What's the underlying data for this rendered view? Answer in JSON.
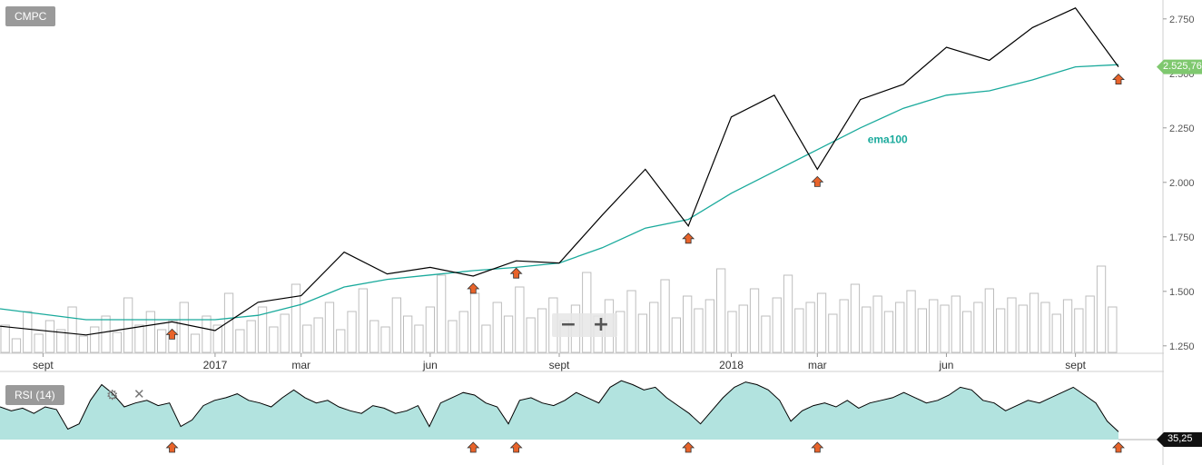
{
  "symbol": "CMPC",
  "indicator_label": "RSI (14)",
  "zoom": {
    "minus": "−",
    "plus": "+"
  },
  "icons": {
    "settings": "gear-icon",
    "close": "close-icon",
    "signal": "arrow-up-icon"
  },
  "colors": {
    "price": "#000000",
    "ema": "#1aaa9c",
    "rsi_fill": "#b2e3df",
    "signal": "#e8632a",
    "volume": "#bdbdbd",
    "price_badge": "#7fc86f"
  },
  "chart_data": [
    {
      "type": "line",
      "title": "CMPC",
      "y_ticks": [
        "2.750",
        "2.500",
        "2.250",
        "2.000",
        "1.750",
        "1.500",
        "1.250"
      ],
      "ylim": [
        1220,
        2820
      ],
      "x_ticks": [
        "sept",
        "2017",
        "mar",
        "jun",
        "sept",
        "2018",
        "mar",
        "jun",
        "sept"
      ],
      "x_months": [
        "2016-09",
        "2017-01",
        "2017-03",
        "2017-06",
        "2017-09",
        "2018-01",
        "2018-03",
        "2018-06",
        "2018-09"
      ],
      "last_price_label": "2.525,76",
      "series": [
        {
          "name": "CMPC",
          "points": [
            [
              "2016-08",
              1340
            ],
            [
              "2016-10",
              1300
            ],
            [
              "2016-12",
              1360
            ],
            [
              "2017-01",
              1320
            ],
            [
              "2017-02",
              1450
            ],
            [
              "2017-03",
              1480
            ],
            [
              "2017-04",
              1680
            ],
            [
              "2017-05",
              1580
            ],
            [
              "2017-06",
              1610
            ],
            [
              "2017-07",
              1570
            ],
            [
              "2017-08",
              1640
            ],
            [
              "2017-09",
              1630
            ],
            [
              "2017-10",
              1850
            ],
            [
              "2017-11",
              2060
            ],
            [
              "2017-12",
              1800
            ],
            [
              "2018-01",
              2300
            ],
            [
              "2018-02",
              2400
            ],
            [
              "2018-03",
              2060
            ],
            [
              "2018-04",
              2380
            ],
            [
              "2018-05",
              2450
            ],
            [
              "2018-06",
              2620
            ],
            [
              "2018-07",
              2560
            ],
            [
              "2018-08",
              2710
            ],
            [
              "2018-09",
              2800
            ],
            [
              "2018-10",
              2530
            ]
          ]
        },
        {
          "name": "ema100",
          "points": [
            [
              "2016-08",
              1420
            ],
            [
              "2016-10",
              1370
            ],
            [
              "2016-12",
              1370
            ],
            [
              "2017-01",
              1370
            ],
            [
              "2017-02",
              1390
            ],
            [
              "2017-03",
              1440
            ],
            [
              "2017-04",
              1520
            ],
            [
              "2017-05",
              1555
            ],
            [
              "2017-06",
              1575
            ],
            [
              "2017-07",
              1595
            ],
            [
              "2017-08",
              1610
            ],
            [
              "2017-09",
              1630
            ],
            [
              "2017-10",
              1700
            ],
            [
              "2017-11",
              1790
            ],
            [
              "2017-12",
              1830
            ],
            [
              "2018-01",
              1950
            ],
            [
              "2018-02",
              2050
            ],
            [
              "2018-03",
              2150
            ],
            [
              "2018-04",
              2250
            ],
            [
              "2018-05",
              2340
            ],
            [
              "2018-06",
              2400
            ],
            [
              "2018-07",
              2420
            ],
            [
              "2018-08",
              2470
            ],
            [
              "2018-09",
              2530
            ],
            [
              "2018-10",
              2540
            ]
          ]
        }
      ],
      "signals": [
        "2016-12",
        "2017-07",
        "2017-08",
        "2017-12",
        "2018-03",
        "2018-10"
      ],
      "volume": {
        "ylim": [
          0,
          100
        ],
        "values": [
          30,
          15,
          45,
          20,
          35,
          25,
          50,
          18,
          28,
          40,
          22,
          60,
          30,
          45,
          25,
          35,
          55,
          20,
          40,
          30,
          65,
          25,
          35,
          50,
          28,
          42,
          75,
          30,
          38,
          55,
          25,
          45,
          70,
          35,
          28,
          60,
          40,
          30,
          50,
          85,
          35,
          45,
          65,
          30,
          55,
          40,
          72,
          38,
          48,
          60,
          35,
          52,
          88,
          40,
          58,
          45,
          68,
          42,
          55,
          80,
          38,
          62,
          48,
          58,
          92,
          45,
          52,
          70,
          40,
          60,
          85,
          48,
          55,
          65,
          42,
          58,
          75,
          50,
          62,
          45,
          55,
          68,
          48,
          58,
          52,
          62,
          45,
          55,
          70,
          48,
          60,
          52,
          65,
          55,
          42,
          58,
          48,
          62,
          95,
          50
        ]
      }
    },
    {
      "type": "area",
      "title": "RSI (14)",
      "ylim": [
        30,
        80
      ],
      "last_value_label": "35,25",
      "values": [
        55,
        52,
        54,
        50,
        55,
        53,
        38,
        42,
        60,
        72,
        65,
        55,
        58,
        60,
        56,
        58,
        40,
        45,
        56,
        60,
        62,
        65,
        60,
        58,
        55,
        62,
        68,
        62,
        58,
        60,
        55,
        52,
        50,
        56,
        54,
        50,
        52,
        56,
        40,
        58,
        62,
        66,
        64,
        58,
        55,
        42,
        60,
        62,
        58,
        56,
        60,
        66,
        62,
        58,
        70,
        75,
        72,
        68,
        70,
        62,
        56,
        50,
        42,
        52,
        62,
        70,
        74,
        72,
        68,
        60,
        44,
        52,
        56,
        58,
        55,
        60,
        54,
        58,
        60,
        62,
        66,
        62,
        58,
        60,
        64,
        70,
        68,
        60,
        58,
        52,
        56,
        60,
        58,
        62,
        66,
        70,
        64,
        58,
        44,
        36
      ]
    }
  ]
}
